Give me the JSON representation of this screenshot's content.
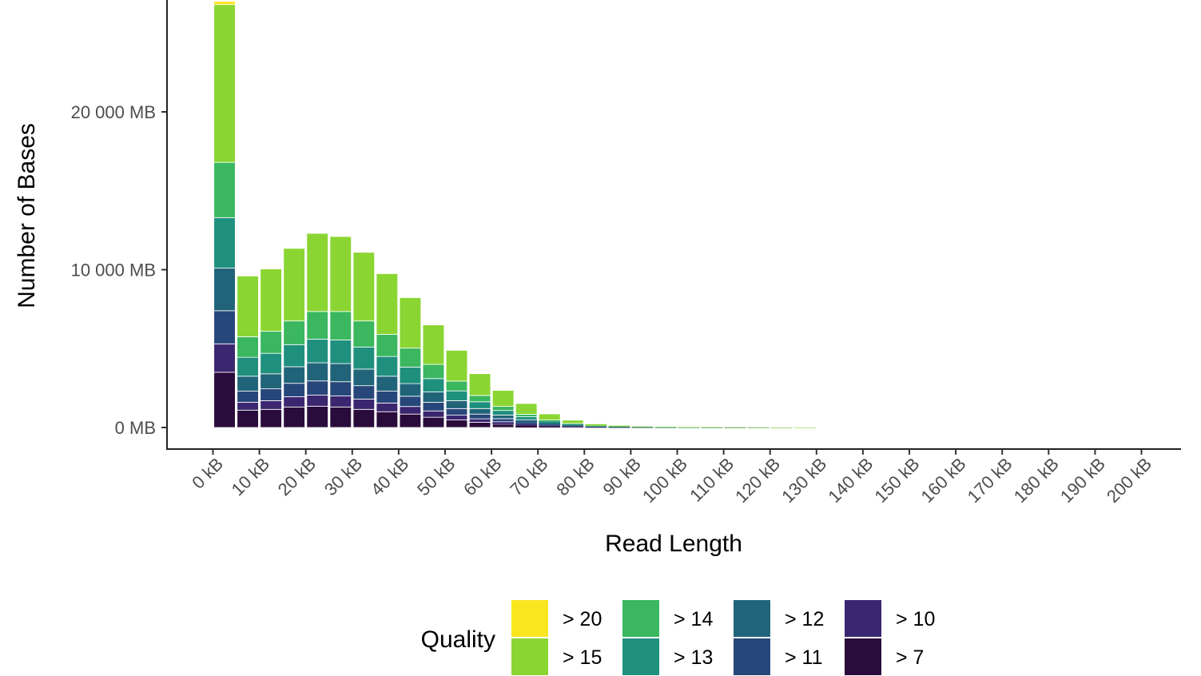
{
  "chart_data": {
    "type": "bar",
    "stacked": true,
    "xlabel": "Read Length",
    "ylabel": "Number of Bases",
    "ylim": [
      0,
      27000
    ],
    "y_ticks": [
      0,
      10000,
      20000
    ],
    "y_tick_labels": [
      "0 MB",
      "10 000 MB",
      "20 000 MB"
    ],
    "x_tick_labels": [
      "0 kB",
      "10 kB",
      "20 kB",
      "30 kB",
      "40 kB",
      "50 kB",
      "60 kB",
      "70 kB",
      "80 kB",
      "90 kB",
      "100 kB",
      "110 kB",
      "120 kB",
      "130 kB",
      "140 kB",
      "150 kB",
      "160 kB",
      "170 kB",
      "180 kB",
      "190 kB",
      "200 kB"
    ],
    "bin_width_kb": 5,
    "categories_kb": [
      2.5,
      7.5,
      12.5,
      17.5,
      22.5,
      27.5,
      32.5,
      37.5,
      42.5,
      47.5,
      52.5,
      57.5,
      62.5,
      67.5,
      72.5,
      77.5,
      82.5,
      87.5,
      92.5,
      97.5,
      102.5,
      107.5,
      112.5,
      117.5,
      122.5,
      127.5
    ],
    "legend": {
      "title": "Quality",
      "position": "bottom"
    },
    "grid": false,
    "series": [
      {
        "name": "> 7",
        "color": "#2a0c3c",
        "values": [
          3500,
          1100,
          1150,
          1300,
          1350,
          1300,
          1150,
          1000,
          850,
          650,
          480,
          330,
          210,
          120,
          70,
          35,
          15,
          10,
          5,
          3,
          2,
          1,
          1,
          0,
          0,
          0
        ]
      },
      {
        "name": "> 10",
        "color": "#3b2670",
        "values": [
          1800,
          500,
          550,
          650,
          700,
          700,
          650,
          550,
          480,
          400,
          300,
          220,
          150,
          90,
          50,
          28,
          12,
          8,
          5,
          3,
          2,
          1,
          1,
          0,
          0,
          0
        ]
      },
      {
        "name": "> 11",
        "color": "#27477a",
        "values": [
          2100,
          700,
          750,
          850,
          900,
          900,
          850,
          750,
          650,
          550,
          420,
          300,
          200,
          130,
          75,
          40,
          18,
          10,
          6,
          4,
          3,
          2,
          1,
          1,
          0,
          0
        ]
      },
      {
        "name": "> 12",
        "color": "#21647a",
        "values": [
          2700,
          950,
          950,
          1050,
          1150,
          1150,
          1050,
          950,
          800,
          650,
          500,
          350,
          230,
          150,
          85,
          45,
          20,
          12,
          7,
          5,
          3,
          2,
          1,
          1,
          0,
          0
        ]
      },
      {
        "name": "> 13",
        "color": "#20907e",
        "values": [
          3200,
          1200,
          1300,
          1400,
          1500,
          1500,
          1400,
          1250,
          1050,
          850,
          620,
          430,
          290,
          190,
          110,
          60,
          28,
          15,
          10,
          6,
          4,
          3,
          2,
          1,
          1,
          0
        ]
      },
      {
        "name": "> 14",
        "color": "#3ab75f",
        "values": [
          3500,
          1300,
          1400,
          1500,
          1750,
          1800,
          1650,
          1400,
          1200,
          900,
          620,
          400,
          260,
          160,
          90,
          50,
          22,
          12,
          8,
          5,
          3,
          2,
          1,
          1,
          1,
          0
        ]
      },
      {
        "name": "> 15",
        "color": "#8bd532",
        "values": [
          10000,
          3850,
          3950,
          4600,
          4950,
          4750,
          4350,
          3850,
          3200,
          2500,
          1950,
          1380,
          1010,
          680,
          380,
          210,
          95,
          50,
          25,
          15,
          8,
          6,
          4,
          3,
          2,
          1
        ]
      },
      {
        "name": "> 20",
        "color": "#fae61e",
        "values": [
          200,
          0,
          0,
          0,
          0,
          0,
          0,
          0,
          0,
          0,
          0,
          0,
          0,
          0,
          0,
          0,
          0,
          0,
          0,
          0,
          0,
          0,
          0,
          0,
          0,
          0
        ]
      }
    ]
  }
}
